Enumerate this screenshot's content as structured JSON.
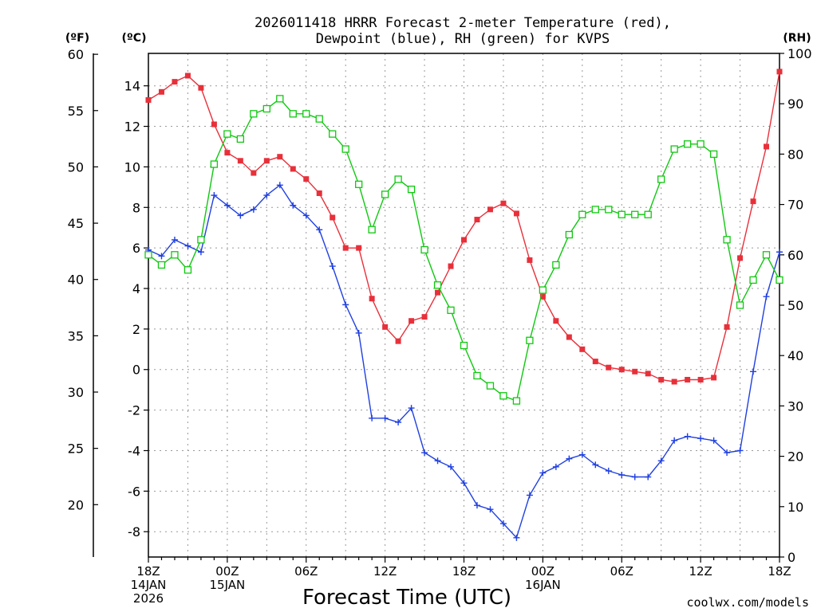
{
  "title_line1": "2026011418 HRRR Forecast 2-meter Temperature (red),",
  "title_line2": "Dewpoint (blue), RH (green) for KVPS",
  "unit_f": "(ºF)",
  "unit_c": "(ºC)",
  "unit_rh": "(RH)",
  "xlabel": "Forecast Time (UTC)",
  "credit": "coolwx.com/models",
  "colors": {
    "temp": "#e8303a",
    "dewpoint": "#2040e0",
    "rh": "#10c810",
    "credit": "#d03030"
  },
  "chart_data": {
    "type": "line",
    "x_hours": [
      0,
      1,
      2,
      3,
      4,
      5,
      6,
      7,
      8,
      9,
      10,
      11,
      12,
      13,
      14,
      15,
      16,
      17,
      18,
      19,
      20,
      21,
      22,
      23,
      24,
      25,
      26,
      27,
      28,
      29,
      30,
      31,
      32,
      33,
      34,
      35,
      36,
      37,
      38,
      39,
      40,
      41,
      42,
      43,
      44,
      45,
      46,
      47,
      48
    ],
    "x_ticks": [
      {
        "hour": 0,
        "lines": [
          "18Z",
          "14JAN",
          "2026"
        ]
      },
      {
        "hour": 6,
        "lines": [
          "00Z",
          "15JAN"
        ]
      },
      {
        "hour": 12,
        "lines": [
          "06Z"
        ]
      },
      {
        "hour": 18,
        "lines": [
          "12Z"
        ]
      },
      {
        "hour": 24,
        "lines": [
          "18Z"
        ]
      },
      {
        "hour": 30,
        "lines": [
          "00Z",
          "16JAN"
        ]
      },
      {
        "hour": 36,
        "lines": [
          "06Z"
        ]
      },
      {
        "hour": 42,
        "lines": [
          "12Z"
        ]
      },
      {
        "hour": 48,
        "lines": [
          "18Z"
        ]
      }
    ],
    "y_celsius": {
      "min": -9.25,
      "max": 15.6,
      "ticks": [
        -8,
        -6,
        -4,
        -2,
        0,
        2,
        4,
        6,
        8,
        10,
        12,
        14
      ]
    },
    "y_fahrenheit": {
      "ticks": [
        20,
        25,
        30,
        35,
        40,
        45,
        50,
        55,
        60
      ]
    },
    "y_rh": {
      "min": 0,
      "max": 100,
      "ticks": [
        0,
        10,
        20,
        30,
        40,
        50,
        60,
        70,
        80,
        90,
        100
      ]
    },
    "grid": true,
    "series": [
      {
        "name": "Temperature",
        "axis": "celsius",
        "marker": "filled-square",
        "values": [
          13.3,
          13.7,
          14.2,
          14.5,
          13.9,
          12.1,
          10.7,
          10.3,
          9.7,
          10.3,
          10.5,
          9.9,
          9.4,
          8.7,
          7.5,
          6.0,
          6.0,
          3.5,
          2.1,
          1.4,
          2.4,
          2.6,
          3.8,
          5.1,
          6.4,
          7.4,
          7.9,
          8.2,
          7.7,
          5.4,
          3.6,
          2.4,
          1.6,
          1.0,
          0.4,
          0.1,
          0.0,
          -0.1,
          -0.2,
          -0.5,
          -0.6,
          -0.5,
          -0.5,
          -0.4,
          2.1,
          5.5,
          8.3,
          11.0,
          14.7
        ]
      },
      {
        "name": "Dewpoint",
        "axis": "celsius",
        "marker": "plus",
        "values": [
          5.9,
          5.6,
          6.4,
          6.1,
          5.8,
          8.6,
          8.1,
          7.6,
          7.9,
          8.6,
          9.1,
          8.1,
          7.6,
          6.9,
          5.1,
          3.2,
          1.8,
          -2.4,
          -2.4,
          -2.6,
          -1.9,
          -4.1,
          -4.5,
          -4.8,
          -5.6,
          -6.7,
          -6.9,
          -7.6,
          -8.3,
          -6.2,
          -5.1,
          -4.8,
          -4.4,
          -4.2,
          -4.7,
          -5.0,
          -5.2,
          -5.3,
          -5.3,
          -4.5,
          -3.5,
          -3.3,
          -3.4,
          -3.5,
          -4.1,
          -4.0,
          -0.1,
          3.6,
          5.8
        ]
      },
      {
        "name": "RH",
        "axis": "rh",
        "marker": "open-square",
        "values": [
          60,
          58,
          60,
          57,
          63,
          78,
          84,
          83,
          88,
          89,
          91,
          88,
          88,
          87,
          84,
          81,
          74,
          65,
          72,
          75,
          73,
          61,
          54,
          49,
          42,
          36,
          34,
          32,
          31,
          43,
          53,
          58,
          64,
          68,
          69,
          69,
          68,
          68,
          68,
          75,
          81,
          82,
          82,
          80,
          63,
          50,
          55,
          60,
          55
        ]
      }
    ]
  }
}
